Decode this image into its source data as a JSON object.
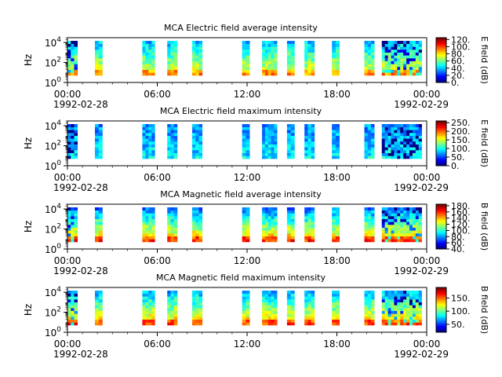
{
  "figure": {
    "x_ticks": [
      "00:00",
      "06:00",
      "12:00",
      "18:00",
      "00:00"
    ],
    "x_start_date": "1992-02-28",
    "x_end_date": "1992-02-29",
    "ylabel": "Hz"
  },
  "chart_data": [
    {
      "type": "heatmap",
      "title": "MCA  Electric field average intensity",
      "ylabel": "Hz",
      "yscale": "log",
      "y_ticks": [
        "10^0",
        "10^2",
        "10^4"
      ],
      "ylim_hz": [
        1,
        30000
      ],
      "xlim": [
        "1992-02-28 00:00",
        "1992-02-29 00:00"
      ],
      "colorbar": {
        "label": "E field (dB)",
        "ticks": [
          "0.",
          "20.",
          "40.",
          "60.",
          "80.",
          "100.",
          "120."
        ],
        "range": [
          0,
          125
        ]
      }
    },
    {
      "type": "heatmap",
      "title": "MCA  Electric field maximum intensity",
      "ylabel": "Hz",
      "yscale": "log",
      "y_ticks": [
        "10^0",
        "10^2",
        "10^4"
      ],
      "ylim_hz": [
        1,
        30000
      ],
      "xlim": [
        "1992-02-28 00:00",
        "1992-02-29 00:00"
      ],
      "colorbar": {
        "label": "E field (dB)",
        "ticks": [
          "0.",
          "50.",
          "100.",
          "150.",
          "200.",
          "250."
        ],
        "range": [
          0,
          260
        ]
      }
    },
    {
      "type": "heatmap",
      "title": "MCA  Magnetic field average intensity",
      "ylabel": "Hz",
      "yscale": "log",
      "y_ticks": [
        "10^0",
        "10^2",
        "10^4"
      ],
      "ylim_hz": [
        1,
        30000
      ],
      "xlim": [
        "1992-02-28 00:00",
        "1992-02-29 00:00"
      ],
      "colorbar": {
        "label": "B field (dB)",
        "ticks": [
          "40.",
          "60.",
          "80.",
          "100.",
          "120.",
          "140.",
          "160.",
          "180."
        ],
        "range": [
          40,
          185
        ]
      }
    },
    {
      "type": "heatmap",
      "title": "MCA  Magnetic field maximum intensity",
      "ylabel": "Hz",
      "yscale": "log",
      "y_ticks": [
        "10^0",
        "10^2",
        "10^4"
      ],
      "ylim_hz": [
        1,
        30000
      ],
      "xlim": [
        "1992-02-28 00:00",
        "1992-02-29 00:00"
      ],
      "colorbar": {
        "label": "B field (dB)",
        "ticks": [
          "50.",
          "100.",
          "150."
        ],
        "range": [
          20,
          190
        ]
      }
    }
  ],
  "data_blocks_utc": [
    {
      "start": "00:00",
      "end": "00:40"
    },
    {
      "start": "01:50",
      "end": "02:20"
    },
    {
      "start": "05:00",
      "end": "05:50"
    },
    {
      "start": "06:40",
      "end": "07:20"
    },
    {
      "start": "08:20",
      "end": "09:00"
    },
    {
      "start": "11:40",
      "end": "12:10"
    },
    {
      "start": "13:00",
      "end": "14:00"
    },
    {
      "start": "14:40",
      "end": "15:10"
    },
    {
      "start": "15:50",
      "end": "16:30"
    },
    {
      "start": "17:40",
      "end": "18:10"
    },
    {
      "start": "19:50",
      "end": "20:30"
    },
    {
      "start": "21:00",
      "end": "23:40"
    }
  ]
}
